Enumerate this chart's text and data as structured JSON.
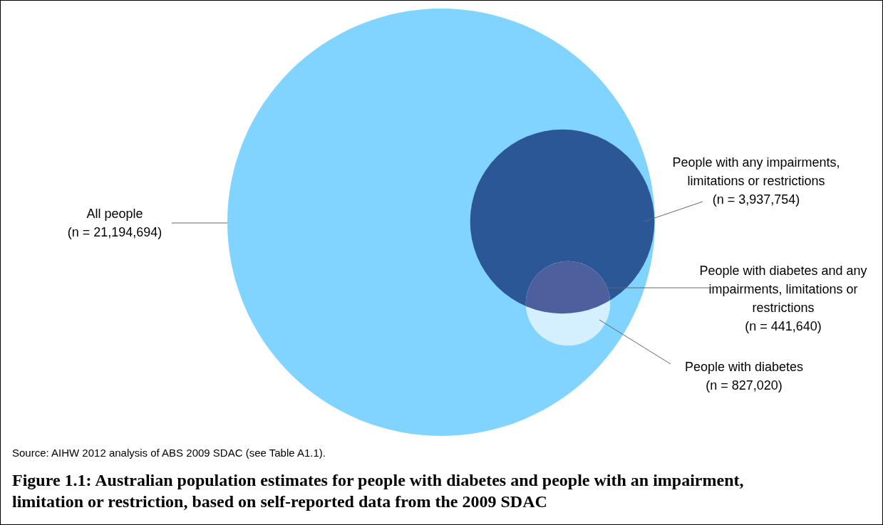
{
  "chart_data": {
    "type": "other",
    "title": "Figure 1.1: Australian population estimates for people with diabetes and people with an impairment, limitation or restriction, based on self-reported data from the 2009 SDAC",
    "categories": [
      "All people",
      "People with any impairments, limitations or restrictions",
      "People with diabetes and any impairments, limitations or restrictions",
      "People with diabetes"
    ],
    "values": [
      21194694,
      3937754,
      441640,
      827020
    ],
    "value_labels": [
      "(n = 21,194,694)",
      "(n = 3,937,754)",
      "(n = 441,640)",
      "(n = 827,020)"
    ],
    "colors": [
      "#80d4ff",
      "#2b5797",
      "#4d5f9c",
      "#d4f0ff"
    ],
    "annotations": [
      "Source: AIHW 2012 analysis of ABS 2009 SDAC (see Table A1.1)."
    ]
  }
}
